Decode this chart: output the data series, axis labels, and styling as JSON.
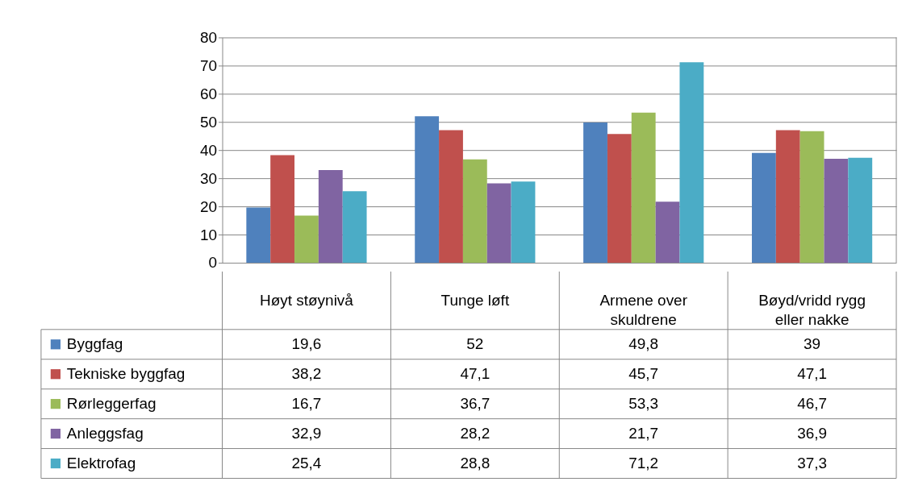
{
  "chart_data": {
    "type": "bar",
    "categories": [
      "Høyt støynivå",
      "Tunge løft",
      "Armene over skuldrene",
      "Bøyd/vridd rygg eller nakke"
    ],
    "series": [
      {
        "name": "Byggfag",
        "color": "#4f81bd",
        "values": [
          19.6,
          52,
          49.8,
          39
        ],
        "value_labels": [
          "19,6",
          "52",
          "49,8",
          "39"
        ]
      },
      {
        "name": "Tekniske byggfag",
        "color": "#c0504d",
        "values": [
          38.2,
          47.1,
          45.7,
          47.1
        ],
        "value_labels": [
          "38,2",
          "47,1",
          "45,7",
          "47,1"
        ]
      },
      {
        "name": "Rørleggerfag",
        "color": "#9bbb59",
        "values": [
          16.7,
          36.7,
          53.3,
          46.7
        ],
        "value_labels": [
          "16,7",
          "36,7",
          "53,3",
          "46,7"
        ]
      },
      {
        "name": "Anleggsfag",
        "color": "#8064a2",
        "values": [
          32.9,
          28.2,
          21.7,
          36.9
        ],
        "value_labels": [
          "32,9",
          "28,2",
          "21,7",
          "36,9"
        ]
      },
      {
        "name": "Elektrofag",
        "color": "#4bacc6",
        "values": [
          25.4,
          28.8,
          71.2,
          37.3
        ],
        "value_labels": [
          "25,4",
          "28,8",
          "71,2",
          "37,3"
        ]
      }
    ],
    "ylim": [
      0,
      80
    ],
    "yticks": [
      0,
      10,
      20,
      30,
      40,
      50,
      60,
      70,
      80
    ],
    "grid": "y",
    "legend": "bottom"
  }
}
